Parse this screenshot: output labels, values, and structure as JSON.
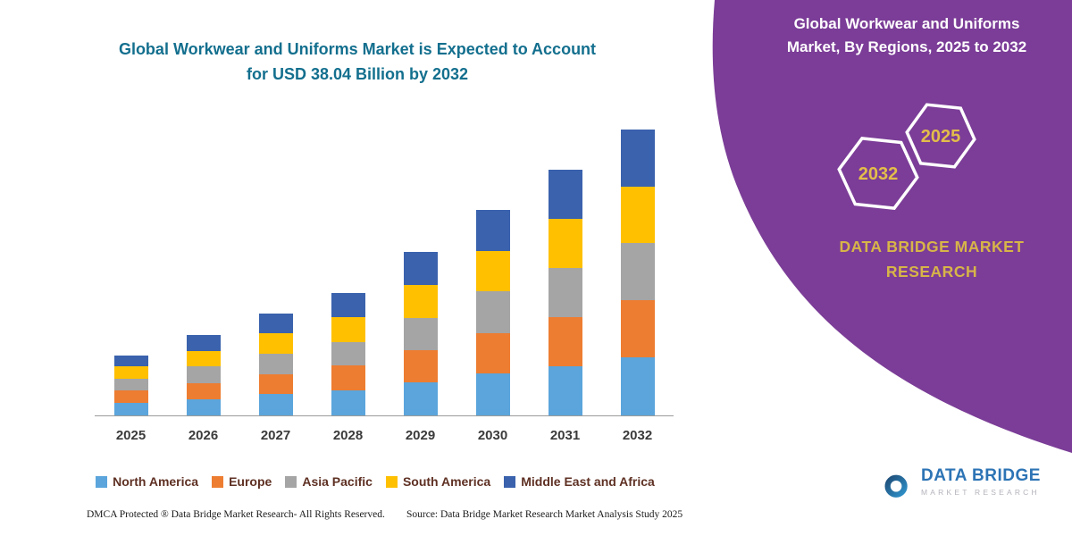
{
  "chart_title": {
    "line1": "Global Workwear and Uniforms Market is Expected to Account",
    "line2": "for USD 38.04 Billion by 2032"
  },
  "chart_data": {
    "type": "bar",
    "stacked": true,
    "title": "Global Workwear and Uniforms Market is Expected to Account for USD 38.04 Billion by 2032",
    "unit": "USD Billion",
    "categories": [
      "2025",
      "2026",
      "2027",
      "2028",
      "2029",
      "2030",
      "2031",
      "2032"
    ],
    "series": [
      {
        "name": "North America",
        "color": "#5ba5dc",
        "values": [
          1.7,
          2.2,
          2.8,
          3.3,
          4.4,
          5.6,
          6.6,
          7.7
        ]
      },
      {
        "name": "Europe",
        "color": "#ed7d31",
        "values": [
          1.6,
          2.1,
          2.7,
          3.3,
          4.3,
          5.4,
          6.5,
          7.6
        ]
      },
      {
        "name": "Asia Pacific",
        "color": "#a5a5a5",
        "values": [
          1.6,
          2.2,
          2.7,
          3.2,
          4.3,
          5.5,
          6.5,
          7.6
        ]
      },
      {
        "name": "South America",
        "color": "#ffc000",
        "values": [
          1.6,
          2.1,
          2.7,
          3.3,
          4.4,
          5.4,
          6.6,
          7.6
        ]
      },
      {
        "name": "Middle East and Africa",
        "color": "#3a62ad",
        "values": [
          1.5,
          2.1,
          2.7,
          3.2,
          4.3,
          5.4,
          6.5,
          7.54
        ]
      }
    ],
    "totals": [
      8.0,
      10.7,
      13.6,
      16.3,
      21.7,
      27.3,
      32.7,
      38.04
    ],
    "ylim": [
      0,
      40
    ],
    "grid": false,
    "legend_position": "bottom"
  },
  "right_panel": {
    "accent_color": "#7b3d97",
    "title_line1": "Global Workwear and Uniforms",
    "title_line2": "Market, By Regions, 2025 to 2032",
    "hexagons": [
      {
        "label": "2032"
      },
      {
        "label": "2025"
      }
    ],
    "hex_label_color": "#e3bd4a",
    "brand_line1": "DATA BRIDGE MARKET",
    "brand_line2": "RESEARCH",
    "brand_color": "#d8b548"
  },
  "footer": {
    "dmca": "DMCA Protected ® Data Bridge Market Research-  All Rights Reserved.",
    "source": "Source: Data Bridge Market Research  Market Analysis Study 2025"
  },
  "logo": {
    "name": "DATA BRIDGE",
    "tagline": "MARKET RESEARCH"
  }
}
